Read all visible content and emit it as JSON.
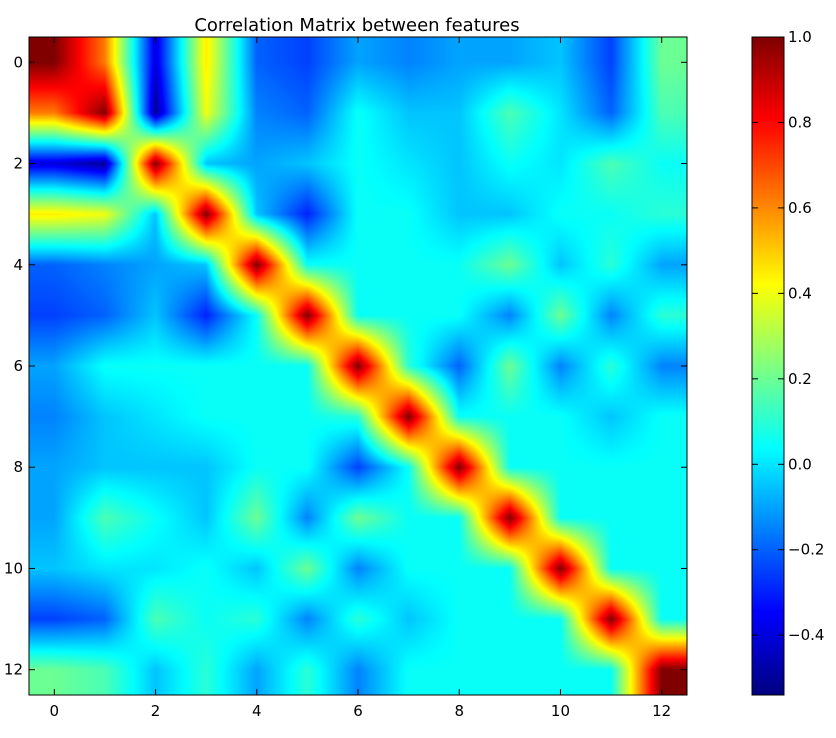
{
  "chart_data": {
    "type": "heatmap",
    "title": "Correlation Matrix between features",
    "xlabel": "",
    "ylabel": "",
    "x_ticks": [
      0,
      2,
      4,
      6,
      8,
      10,
      12
    ],
    "y_ticks": [
      0,
      2,
      4,
      6,
      8,
      10,
      12
    ],
    "x_tick_labels": [
      "0",
      "2",
      "4",
      "6",
      "8",
      "10",
      "12"
    ],
    "y_tick_labels": [
      "0",
      "2",
      "4",
      "6",
      "8",
      "10",
      "12"
    ],
    "colormap": "jet",
    "interpolation": "bilinear",
    "colorbar": {
      "vmin": -0.54,
      "vmax": 1.0,
      "ticks": [
        1.0,
        0.8,
        0.6,
        0.4,
        0.2,
        0.0,
        -0.2,
        -0.4
      ],
      "tick_labels": [
        "1.0",
        "0.8",
        "0.6",
        "0.4",
        "0.2",
        "0.0",
        "−0.2",
        "−0.4"
      ]
    },
    "matrix": [
      [
        1.0,
        0.62,
        -0.4,
        0.45,
        -0.2,
        -0.25,
        -0.1,
        -0.15,
        -0.1,
        -0.1,
        -0.05,
        -0.25,
        0.2
      ],
      [
        0.62,
        1.0,
        -0.5,
        0.4,
        -0.15,
        -0.2,
        0.05,
        -0.05,
        -0.05,
        0.15,
        0.0,
        -0.2,
        0.15
      ],
      [
        -0.4,
        -0.5,
        1.0,
        -0.05,
        -0.1,
        -0.05,
        0.05,
        0.0,
        -0.05,
        0.05,
        0.0,
        0.15,
        0.05
      ],
      [
        0.45,
        0.4,
        -0.05,
        1.0,
        -0.05,
        -0.3,
        0.05,
        0.05,
        -0.05,
        -0.05,
        0.05,
        0.05,
        0.1
      ],
      [
        -0.2,
        -0.15,
        -0.1,
        -0.05,
        1.0,
        0.05,
        0.05,
        0.05,
        0.05,
        0.2,
        -0.05,
        0.1,
        -0.1
      ],
      [
        -0.25,
        -0.2,
        -0.05,
        -0.3,
        0.05,
        1.0,
        0.05,
        0.05,
        0.05,
        -0.15,
        0.2,
        -0.15,
        0.1
      ],
      [
        -0.1,
        0.05,
        0.05,
        0.05,
        0.05,
        0.05,
        1.0,
        0.1,
        -0.2,
        0.2,
        -0.15,
        0.1,
        -0.15
      ],
      [
        -0.15,
        -0.05,
        0.0,
        0.05,
        0.05,
        0.05,
        0.1,
        1.0,
        0.05,
        0.05,
        0.05,
        -0.05,
        0.05
      ],
      [
        -0.1,
        -0.05,
        -0.05,
        -0.05,
        0.05,
        0.05,
        -0.25,
        0.05,
        1.0,
        0.05,
        0.05,
        0.05,
        0.05
      ],
      [
        -0.1,
        0.15,
        0.05,
        -0.05,
        0.2,
        -0.15,
        0.2,
        0.05,
        0.05,
        1.0,
        0.05,
        0.05,
        0.05
      ],
      [
        -0.05,
        0.0,
        0.0,
        0.05,
        -0.05,
        0.2,
        -0.15,
        0.05,
        0.05,
        0.05,
        1.0,
        0.05,
        0.05
      ],
      [
        -0.25,
        -0.2,
        0.15,
        0.05,
        0.1,
        -0.15,
        0.1,
        -0.05,
        0.05,
        0.05,
        0.05,
        1.0,
        0.05
      ],
      [
        0.2,
        0.15,
        -0.05,
        0.1,
        -0.1,
        0.1,
        -0.15,
        0.05,
        0.05,
        0.05,
        0.05,
        0.05,
        1.0
      ]
    ]
  }
}
